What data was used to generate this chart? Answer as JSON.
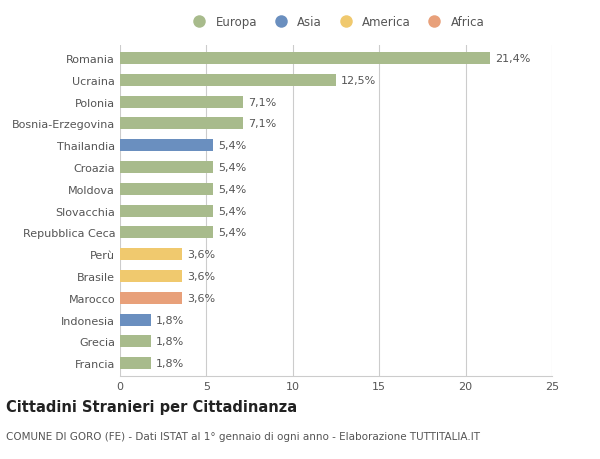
{
  "countries": [
    "Romania",
    "Ucraina",
    "Polonia",
    "Bosnia-Erzegovina",
    "Thailandia",
    "Croazia",
    "Moldova",
    "Slovacchia",
    "Repubblica Ceca",
    "Perù",
    "Brasile",
    "Marocco",
    "Indonesia",
    "Grecia",
    "Francia"
  ],
  "values": [
    21.4,
    12.5,
    7.1,
    7.1,
    5.4,
    5.4,
    5.4,
    5.4,
    5.4,
    3.6,
    3.6,
    3.6,
    1.8,
    1.8,
    1.8
  ],
  "labels": [
    "21,4%",
    "12,5%",
    "7,1%",
    "7,1%",
    "5,4%",
    "5,4%",
    "5,4%",
    "5,4%",
    "5,4%",
    "3,6%",
    "3,6%",
    "3,6%",
    "1,8%",
    "1,8%",
    "1,8%"
  ],
  "continents": [
    "Europa",
    "Europa",
    "Europa",
    "Europa",
    "Asia",
    "Europa",
    "Europa",
    "Europa",
    "Europa",
    "America",
    "America",
    "Africa",
    "Asia",
    "Europa",
    "Europa"
  ],
  "colors": {
    "Europa": "#a8bb8c",
    "Asia": "#6a8fbf",
    "America": "#f0c96e",
    "Africa": "#e8a07a"
  },
  "legend_order": [
    "Europa",
    "Asia",
    "America",
    "Africa"
  ],
  "xlim": [
    0,
    25
  ],
  "xticks": [
    0,
    5,
    10,
    15,
    20,
    25
  ],
  "title": "Cittadini Stranieri per Cittadinanza",
  "subtitle": "COMUNE DI GORO (FE) - Dati ISTAT al 1° gennaio di ogni anno - Elaborazione TUTTITALIA.IT",
  "background_color": "#ffffff",
  "grid_color": "#cccccc",
  "bar_height": 0.55,
  "label_fontsize": 8,
  "tick_fontsize": 8,
  "title_fontsize": 10.5,
  "subtitle_fontsize": 7.5
}
